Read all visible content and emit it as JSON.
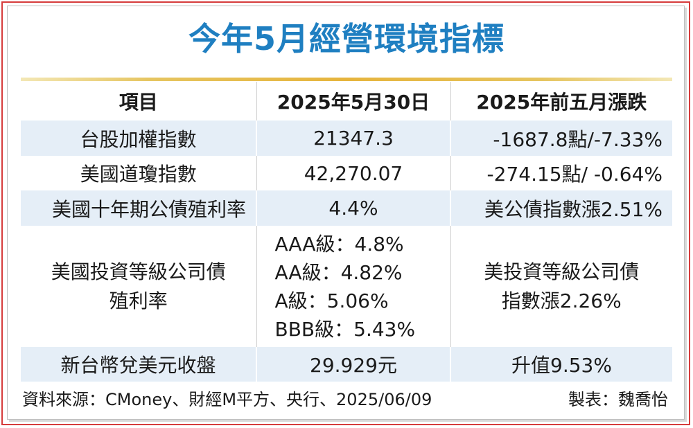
{
  "title": "今年5月經營環境指標",
  "table": {
    "headers": [
      "項目",
      "2025年5月30日",
      "2025年前五月漲跌"
    ],
    "rows": [
      {
        "item": "台股加權指數",
        "value": "21347.3",
        "change": "-1687.8點/-7.33%"
      },
      {
        "item": "美國道瓊指數",
        "value": "42,270.07",
        "change": "-274.15點/ -0.64%"
      },
      {
        "item": "美國十年期公債殖利率",
        "value": "4.4%",
        "change": "美公債指數漲2.51%"
      },
      {
        "item_lines": [
          "美國投資等級公司債",
          "殖利率"
        ],
        "value_lines": [
          "AAA級：4.8%",
          "AA級：4.82%",
          "A級：5.06%",
          "BBB級：5.43%"
        ],
        "change_lines": [
          "美投資等級公司債",
          "指數漲2.26%"
        ]
      },
      {
        "item": "新台幣兌美元收盤",
        "value": "29.929元",
        "change": "升值9.53%"
      }
    ]
  },
  "footer": {
    "source": "資料來源：CMoney、財經M平方、央行、2025/06/09",
    "author": "製表：魏喬怡"
  },
  "colors": {
    "title": "#1f7fc1",
    "row_shade": "#e5eef7",
    "gold_rule": "#e6b43c",
    "frame": "#d63b3b"
  }
}
